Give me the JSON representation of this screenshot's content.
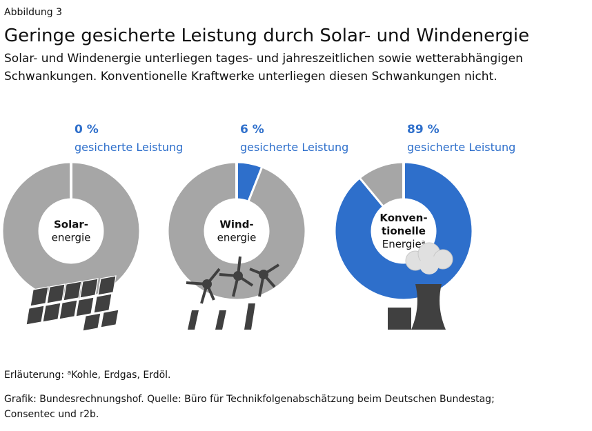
{
  "header": {
    "label": "Abbildung 3",
    "title": "Geringe gesicherte Leistung durch Solar- und Windenergie",
    "subtitle": [
      "Solar- und Windenergie unterliegen tages- und jahreszeitlichen sowie wetterabhängigen",
      "Schwankungen. Konventionelle Kraftwerke unterliegen diesen Schwankungen nicht."
    ]
  },
  "chart_data": [
    {
      "type": "donut",
      "values": [
        0
      ],
      "value_labels": [
        "0 %"
      ],
      "caption": "gesicherte Leistung",
      "center_label": [
        "Solar-",
        "energie"
      ],
      "colors": [
        "#2e6fcb",
        "#a6a6a6"
      ],
      "total": 100
    },
    {
      "type": "donut",
      "values": [
        6
      ],
      "value_labels": [
        "6 %"
      ],
      "caption": "gesicherte Leistung",
      "center_label": [
        "Wind-",
        "energie"
      ],
      "colors": [
        "#2e6fcb",
        "#a6a6a6"
      ],
      "total": 100
    },
    {
      "type": "donut",
      "values": [
        89
      ],
      "value_labels": [
        "89 %"
      ],
      "caption": "gesicherte Leistung",
      "center_label": [
        "Konven-",
        "tionelle",
        "Energie"
      ],
      "center_note": "a",
      "colors": [
        "#2e6fcb",
        "#a6a6a6"
      ],
      "total": 100
    }
  ],
  "footer": {
    "note_prefix": "Erläuterung: ",
    "note_mark": "a",
    "note_text": "Kohle, Erdgas, Erdöl.",
    "source": [
      "Grafik: Bundesrechnungshof. Quelle: Büro für Technikfolgenabschätzung beim Deutschen Bundestag;",
      "Consentec und r2b."
    ]
  }
}
